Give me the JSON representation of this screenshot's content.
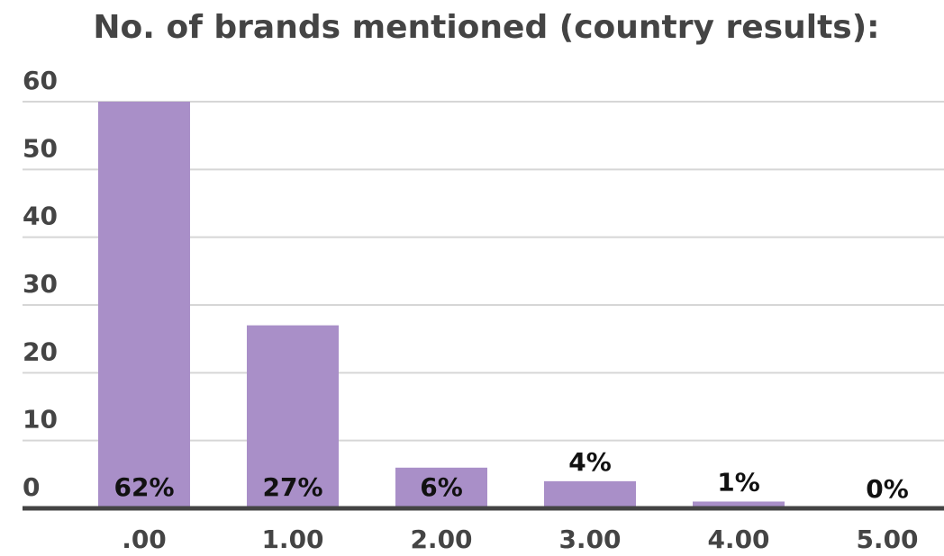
{
  "chart_data": {
    "type": "bar",
    "title": "No. of brands mentioned (country results):",
    "categories": [
      ".00",
      "1.00",
      "2.00",
      "3.00",
      "4.00",
      "5.00"
    ],
    "values": [
      62,
      27,
      6,
      4,
      1,
      0
    ],
    "value_labels": [
      "62%",
      "27%",
      "6%",
      "4%",
      "1%",
      "0%"
    ],
    "color": "#a98fc8",
    "ylim": [
      0,
      60
    ],
    "yticks": [
      0,
      10,
      20,
      30,
      40,
      50,
      60
    ],
    "grid": true
  }
}
